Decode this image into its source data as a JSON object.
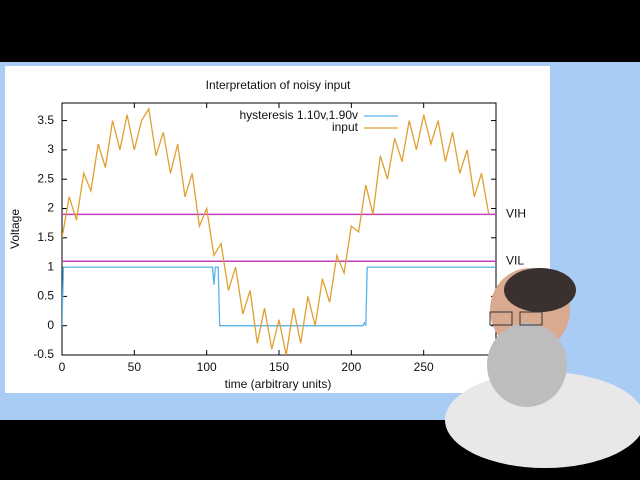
{
  "chart_data": {
    "type": "line",
    "title": "Interpretation of noisy input",
    "x_label": "time (arbitrary units)",
    "y_label": "Voltage",
    "xlim": [
      0,
      300
    ],
    "ylim": [
      -0.5,
      3.8
    ],
    "xticks": [
      0,
      50,
      100,
      150,
      200,
      250
    ],
    "yticks": [
      -0.5,
      0,
      0.5,
      1,
      1.5,
      2,
      2.5,
      3,
      3.5
    ],
    "hlines": [
      {
        "value": 1.9,
        "label": "VIH"
      },
      {
        "value": 1.1,
        "label": "VIL"
      }
    ],
    "hline_color": "#c040c0",
    "legend": "top",
    "series": [
      {
        "name": "hysteresis 1.10v,1.90v",
        "color": "#56b4e9",
        "x": [
          0,
          1,
          104,
          105,
          106,
          108,
          109,
          208,
          209,
          210,
          211,
          300
        ],
        "values": [
          0,
          1,
          1,
          0.7,
          1,
          1,
          0,
          0,
          0.05,
          0,
          1,
          1
        ]
      },
      {
        "name": "input",
        "color": "#e0a030",
        "x": [
          0,
          5,
          10,
          15,
          20,
          25,
          30,
          35,
          40,
          45,
          50,
          55,
          60,
          65,
          70,
          75,
          80,
          85,
          90,
          95,
          100,
          105,
          110,
          115,
          120,
          125,
          130,
          135,
          140,
          145,
          150,
          155,
          160,
          165,
          170,
          175,
          180,
          185,
          190,
          195,
          200,
          205,
          210,
          215,
          220,
          225,
          230,
          235,
          240,
          245,
          250,
          255,
          260,
          265,
          270,
          275,
          280,
          285,
          290,
          295
        ],
        "values": [
          1.5,
          2.2,
          1.8,
          2.6,
          2.3,
          3.1,
          2.7,
          3.5,
          3.0,
          3.6,
          3.0,
          3.5,
          3.7,
          2.9,
          3.3,
          2.6,
          3.1,
          2.2,
          2.6,
          1.7,
          2.0,
          1.2,
          1.4,
          0.6,
          1.0,
          0.2,
          0.6,
          -0.3,
          0.3,
          -0.4,
          0.1,
          -0.5,
          0.3,
          -0.3,
          0.5,
          0.0,
          0.8,
          0.4,
          1.2,
          0.9,
          1.7,
          1.6,
          2.4,
          1.9,
          2.9,
          2.5,
          3.2,
          2.8,
          3.5,
          3.0,
          3.6,
          3.1,
          3.5,
          2.8,
          3.3,
          2.6,
          3.0,
          2.2,
          2.6,
          1.9
        ]
      }
    ]
  }
}
